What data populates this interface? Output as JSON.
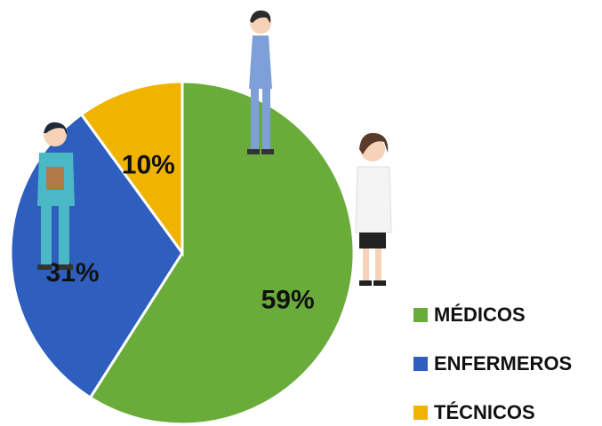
{
  "chart_data": {
    "type": "pie",
    "categories": [
      "MÉDICOS",
      "ENFERMEROS",
      "TÉCNICOS"
    ],
    "values": [
      59,
      31,
      10
    ],
    "value_labels": [
      "59%",
      "31%",
      "10%"
    ],
    "colors": [
      "#6aac3a",
      "#2e5fbf",
      "#f0b400"
    ]
  }
}
